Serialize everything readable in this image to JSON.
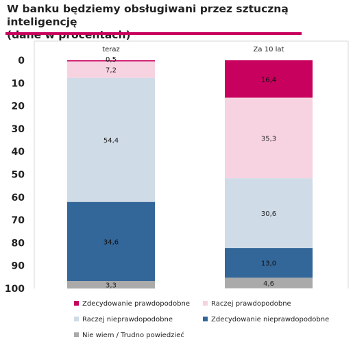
{
  "header": {
    "title_line1": "W banku będziemy obsługiwani przez sztuczną inteligencję",
    "title_line2": "(dane w procentach)"
  },
  "chart_data": {
    "type": "bar",
    "stacked": true,
    "orientation": "vertical",
    "y_axis_inverted": true,
    "categories": [
      "teraz",
      "Za 10 lat"
    ],
    "series": [
      {
        "name": "Zdecydowanie prawdopodobne",
        "color": "#c8005e",
        "labels": [
          "0,5",
          "16,4"
        ],
        "values": [
          0.5,
          16.4
        ]
      },
      {
        "name": "Raczej prawdopodobne",
        "color": "#f7d3e2",
        "labels": [
          "7,2",
          "35,3"
        ],
        "values": [
          7.2,
          35.3
        ]
      },
      {
        "name": "Raczej nieprawdopodobne",
        "color": "#cfdbe7",
        "labels": [
          "54,4",
          "30,6"
        ],
        "values": [
          54.4,
          30.6
        ]
      },
      {
        "name": "Zdecydowanie nieprawdopodobne",
        "color": "#336699",
        "labels": [
          "34,6",
          "13,0"
        ],
        "values": [
          34.6,
          13.0
        ]
      },
      {
        "name": "Nie wiem / Trudno powiedzieć",
        "color": "#aaaaaa",
        "labels": [
          "3,3",
          "4,6"
        ],
        "values": [
          3.3,
          4.6
        ]
      }
    ],
    "yticks": [
      "0",
      "10",
      "20",
      "30",
      "40",
      "50",
      "60",
      "70",
      "80",
      "90",
      "100"
    ],
    "ylim": [
      0,
      100
    ],
    "grid": false,
    "legend_position": "bottom"
  }
}
